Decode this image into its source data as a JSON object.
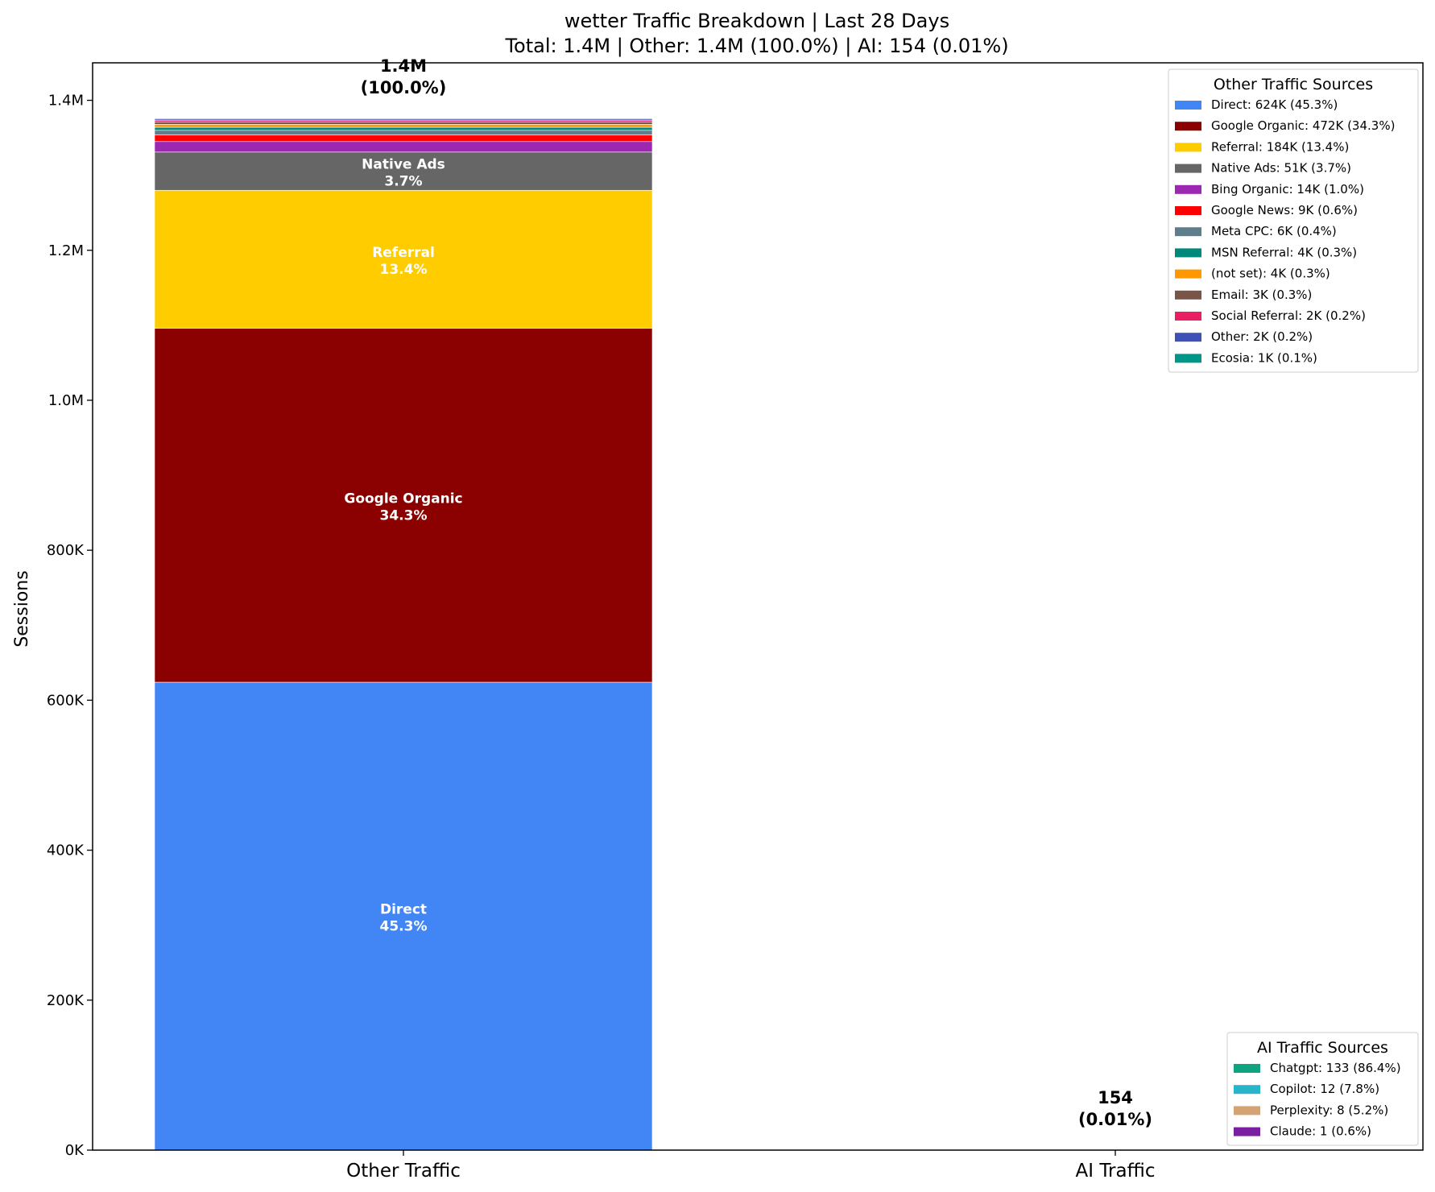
{
  "chart_data": {
    "type": "bar",
    "stacked": true,
    "title": "wetter Traffic Breakdown | Last 28 Days",
    "subtitle": "Total: 1.4M | Other: 1.4M (100.0%) | AI: 154 (0.01%)",
    "xlabel": "",
    "ylabel": "Sessions",
    "ylim": [
      0,
      1450000
    ],
    "yticks": [
      0,
      200000,
      400000,
      600000,
      800000,
      1000000,
      1200000,
      1400000
    ],
    "ytick_labels": [
      "0K",
      "200K",
      "400K",
      "600K",
      "800K",
      "1.0M",
      "1.2M",
      "1.4M"
    ],
    "grid": false,
    "categories": [
      "Other Traffic",
      "AI Traffic"
    ],
    "bar_totals": [
      {
        "value": "1.4M",
        "pct": "(100.0%)"
      },
      {
        "value": "154",
        "pct": "(0.01%)"
      }
    ],
    "other_segments": [
      {
        "name": "Direct",
        "value": 624000,
        "pct": "45.3%",
        "color": "#4285F4",
        "legend": "Direct: 624K (45.3%)",
        "inline": true
      },
      {
        "name": "Google Organic",
        "value": 472000,
        "pct": "34.3%",
        "color": "#8B0000",
        "legend": "Google Organic: 472K (34.3%)",
        "inline": true
      },
      {
        "name": "Referral",
        "value": 184000,
        "pct": "13.4%",
        "color": "#FFCC00",
        "legend": "Referral: 184K (13.4%)",
        "inline": true
      },
      {
        "name": "Native Ads",
        "value": 51000,
        "pct": "3.7%",
        "color": "#666666",
        "legend": "Native Ads: 51K (3.7%)",
        "inline": true
      },
      {
        "name": "Bing Organic",
        "value": 14000,
        "pct": "1.0%",
        "color": "#9C27B0",
        "legend": "Bing Organic: 14K (1.0%)",
        "inline": false
      },
      {
        "name": "Google News",
        "value": 9000,
        "pct": "0.6%",
        "color": "#FF0000",
        "legend": "Google News: 9K (0.6%)",
        "inline": false
      },
      {
        "name": "Meta CPC",
        "value": 6000,
        "pct": "0.4%",
        "color": "#607D8B",
        "legend": "Meta CPC: 6K (0.4%)",
        "inline": false
      },
      {
        "name": "MSN Referral",
        "value": 4000,
        "pct": "0.3%",
        "color": "#00897B",
        "legend": "MSN Referral: 4K (0.3%)",
        "inline": false
      },
      {
        "name": "(not set)",
        "value": 4000,
        "pct": "0.3%",
        "color": "#FF9800",
        "legend": "(not set): 4K (0.3%)",
        "inline": false
      },
      {
        "name": "Email",
        "value": 3000,
        "pct": "0.3%",
        "color": "#795548",
        "legend": "Email: 3K (0.3%)",
        "inline": false
      },
      {
        "name": "Social Referral",
        "value": 2000,
        "pct": "0.2%",
        "color": "#E91E63",
        "legend": "Social Referral: 2K (0.2%)",
        "inline": false
      },
      {
        "name": "Other",
        "value": 2000,
        "pct": "0.2%",
        "color": "#3F51B5",
        "legend": "Other: 2K (0.2%)",
        "inline": false
      },
      {
        "name": "Ecosia",
        "value": 1000,
        "pct": "0.1%",
        "color": "#009688",
        "legend": "Ecosia: 1K (0.1%)",
        "inline": false
      }
    ],
    "ai_segments": [
      {
        "name": "Chatgpt",
        "value": 133,
        "pct": "86.4%",
        "color": "#10A37F",
        "legend": "Chatgpt: 133 (86.4%)"
      },
      {
        "name": "Copilot",
        "value": 12,
        "pct": "7.8%",
        "color": "#26B5C9",
        "legend": "Copilot: 12 (7.8%)"
      },
      {
        "name": "Perplexity",
        "value": 8,
        "pct": "5.2%",
        "color": "#D4A373",
        "legend": "Perplexity: 8 (5.2%)"
      },
      {
        "name": "Claude",
        "value": 1,
        "pct": "0.6%",
        "color": "#7B1FA2",
        "legend": "Claude: 1 (0.6%)"
      }
    ],
    "legends": [
      {
        "title": "Other Traffic Sources",
        "placement": "upper right"
      },
      {
        "title": "AI Traffic Sources",
        "placement": "lower right"
      }
    ]
  }
}
